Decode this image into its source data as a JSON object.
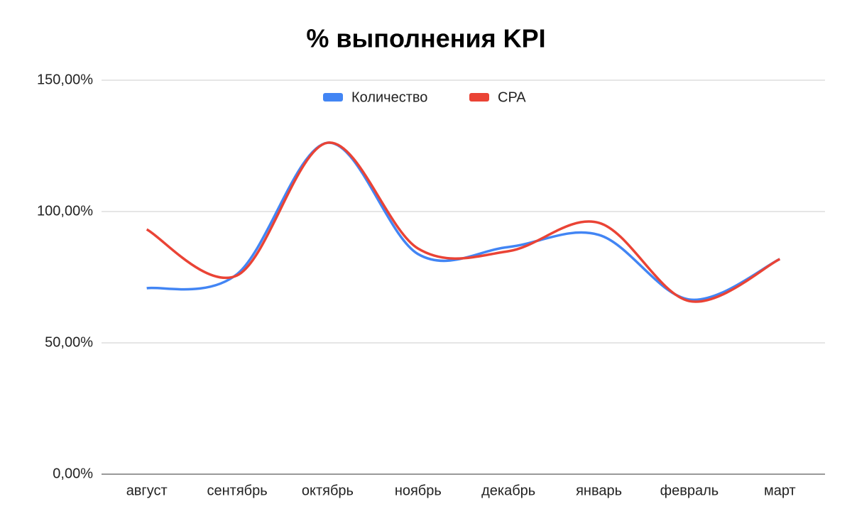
{
  "chart_data": {
    "type": "line",
    "title": "% выполнения KPI",
    "categories": [
      "август",
      "сентябрь",
      "октябрь",
      "ноябрь",
      "декабрь",
      "январь",
      "февраль",
      "март"
    ],
    "series": [
      {
        "name": "Количество",
        "color": "#4285f4",
        "values": [
          70.8,
          76.2,
          126.2,
          83.8,
          86.5,
          91.1,
          66.5,
          81.9
        ]
      },
      {
        "name": "CPA",
        "color": "#ea4335",
        "values": [
          93.2,
          75.7,
          126.2,
          85.9,
          84.9,
          95.7,
          65.9,
          81.9
        ]
      }
    ],
    "ylim": [
      0,
      150
    ],
    "yticks": [
      {
        "value": 0,
        "label": "0,00%"
      },
      {
        "value": 50,
        "label": "50,00%"
      },
      {
        "value": 100,
        "label": "100,00%"
      },
      {
        "value": 150,
        "label": "150,00%"
      }
    ],
    "grid": true,
    "smooth": true,
    "legend": "top"
  }
}
